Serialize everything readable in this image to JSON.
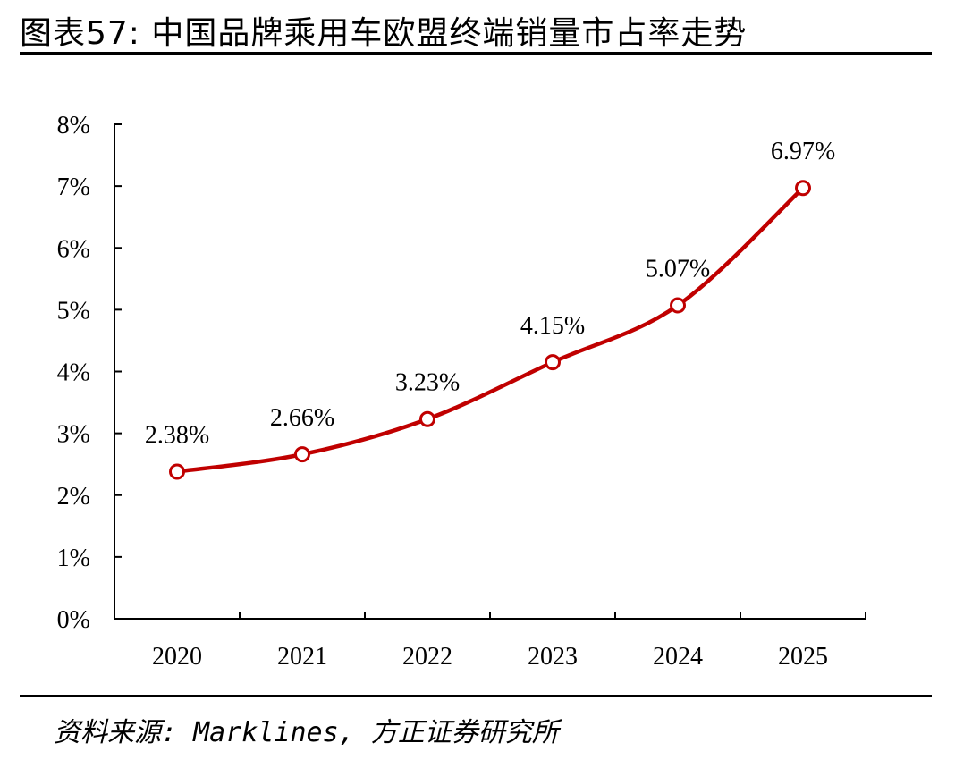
{
  "figure": {
    "title": "图表57: 中国品牌乘用车欧盟终端销量市占率走势",
    "source": "资料来源: Marklines, 方正证券研究所"
  },
  "colors": {
    "line": "#C00000",
    "marker_fill": "#ffffff",
    "axis": "#000000"
  },
  "chart_data": {
    "type": "line",
    "categories": [
      "2020",
      "2021",
      "2022",
      "2023",
      "2024",
      "2025"
    ],
    "series": [
      {
        "values": [
          2.38,
          2.66,
          3.23,
          4.15,
          5.07,
          6.97
        ]
      }
    ],
    "data_labels": [
      "2.38%",
      "2.66%",
      "3.23%",
      "4.15%",
      "5.07%",
      "6.97%"
    ],
    "yticks": [
      0,
      1,
      2,
      3,
      4,
      5,
      6,
      7,
      8
    ],
    "ytick_labels": [
      "0%",
      "1%",
      "2%",
      "3%",
      "4%",
      "5%",
      "6%",
      "7%",
      "8%"
    ],
    "ylim": [
      0,
      8
    ],
    "grid": false,
    "smooth": true,
    "markers": "open-circle"
  }
}
